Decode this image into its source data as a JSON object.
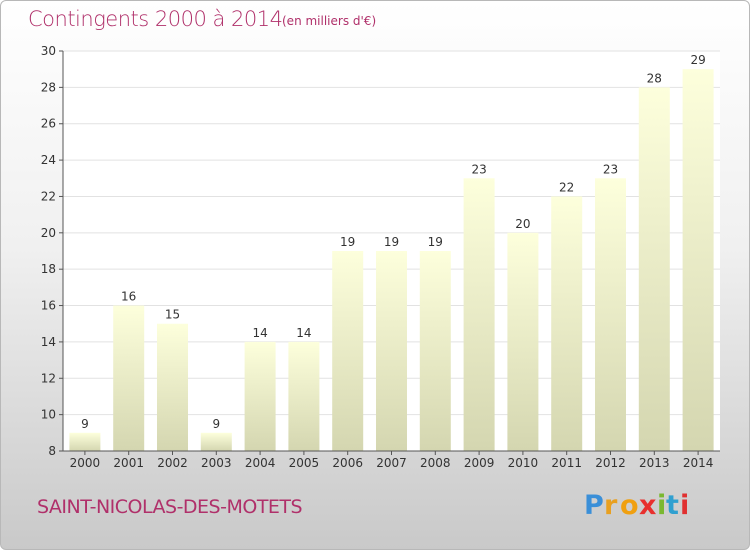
{
  "title": "Contingents 2000 à 2014",
  "subtitle": "(en milliers d'€)",
  "commune": "SAINT-NICOLAS-DES-MOTETS",
  "brand": {
    "name": "Proxiti",
    "letters": [
      "P",
      "r",
      "o",
      "x",
      "i",
      "t",
      "i"
    ],
    "letter_colors": [
      "#3a8fd8",
      "#e8a020",
      "#f0a010",
      "#e8302e",
      "#7ab830",
      "#30a0d0",
      "#e03030"
    ]
  },
  "colors": {
    "title": "#b0306a",
    "bar_top": "#fdffdc",
    "bar_bottom": "#d4d6b0",
    "axis": "#555555",
    "grid": "#e2e2e2"
  },
  "chart_data": {
    "type": "bar",
    "categories": [
      "2000",
      "2001",
      "2002",
      "2003",
      "2004",
      "2005",
      "2006",
      "2007",
      "2008",
      "2009",
      "2010",
      "2011",
      "2012",
      "2013",
      "2014"
    ],
    "values": [
      9,
      16,
      15,
      9,
      14,
      14,
      19,
      19,
      19,
      23,
      20,
      22,
      23,
      28,
      29
    ],
    "ylim": [
      8,
      30
    ],
    "yticks": [
      8,
      10,
      12,
      14,
      16,
      18,
      20,
      22,
      24,
      26,
      28,
      30
    ],
    "grid": true
  }
}
